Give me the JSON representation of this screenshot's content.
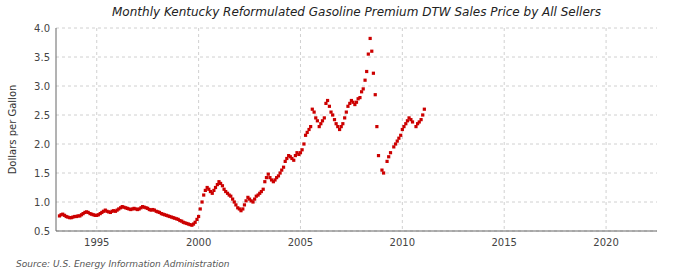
{
  "chart_data": {
    "type": "scatter",
    "title": "Monthly Kentucky Reformulated Gasoline Premium DTW Sales Price by All Sellers",
    "ylabel": "Dollars per Gallon",
    "source": "Source: U.S. Energy Information Administration",
    "color": "#cc0000",
    "marker": "square",
    "grid": true,
    "xlim": [
      1993.0,
      2022.5
    ],
    "ylim": [
      0.5,
      4.0
    ],
    "xticks": [
      1995,
      2000,
      2005,
      2010,
      2015,
      2020
    ],
    "yticks": [
      0.5,
      {
        "value": 1.0,
        "label": "1.0"
      },
      1.5,
      {
        "value": 2.0,
        "label": "2.0"
      },
      2.5,
      {
        "value": 3.0,
        "label": "3.0"
      },
      3.5,
      {
        "value": 4.0,
        "label": "4.0"
      }
    ],
    "x": [
      1993.17,
      1993.25,
      1993.33,
      1993.42,
      1993.5,
      1993.58,
      1993.67,
      1993.75,
      1993.83,
      1993.92,
      1994.0,
      1994.08,
      1994.17,
      1994.25,
      1994.33,
      1994.42,
      1994.5,
      1994.58,
      1994.67,
      1994.75,
      1994.83,
      1994.92,
      1995.0,
      1995.08,
      1995.17,
      1995.25,
      1995.33,
      1995.42,
      1995.5,
      1995.58,
      1995.67,
      1995.75,
      1995.83,
      1995.92,
      1996.0,
      1996.08,
      1996.17,
      1996.25,
      1996.33,
      1996.42,
      1996.5,
      1996.58,
      1996.67,
      1996.75,
      1996.83,
      1996.92,
      1997.0,
      1997.08,
      1997.17,
      1997.25,
      1997.33,
      1997.42,
      1997.5,
      1997.58,
      1997.67,
      1997.75,
      1997.83,
      1997.92,
      1998.0,
      1998.08,
      1998.17,
      1998.25,
      1998.33,
      1998.42,
      1998.5,
      1998.58,
      1998.67,
      1998.75,
      1998.83,
      1998.92,
      1999.0,
      1999.08,
      1999.17,
      1999.25,
      1999.33,
      1999.42,
      1999.5,
      1999.58,
      1999.67,
      1999.75,
      1999.83,
      1999.92,
      2000.0,
      2000.08,
      2000.17,
      2000.25,
      2000.33,
      2000.42,
      2000.5,
      2000.58,
      2000.67,
      2000.75,
      2000.83,
      2000.92,
      2001.0,
      2001.08,
      2001.17,
      2001.25,
      2001.33,
      2001.42,
      2001.5,
      2001.58,
      2001.67,
      2001.75,
      2001.83,
      2001.92,
      2002.0,
      2002.08,
      2002.17,
      2002.25,
      2002.33,
      2002.42,
      2002.5,
      2002.58,
      2002.67,
      2002.75,
      2002.83,
      2002.92,
      2003.0,
      2003.08,
      2003.17,
      2003.25,
      2003.33,
      2003.42,
      2003.5,
      2003.58,
      2003.67,
      2003.75,
      2003.83,
      2003.92,
      2004.0,
      2004.08,
      2004.17,
      2004.25,
      2004.33,
      2004.42,
      2004.5,
      2004.58,
      2004.67,
      2004.75,
      2004.83,
      2004.92,
      2005.0,
      2005.08,
      2005.17,
      2005.25,
      2005.33,
      2005.42,
      2005.5,
      2005.58,
      2005.67,
      2005.75,
      2005.83,
      2005.92,
      2006.0,
      2006.08,
      2006.17,
      2006.25,
      2006.33,
      2006.42,
      2006.5,
      2006.58,
      2006.67,
      2006.75,
      2006.83,
      2006.92,
      2007.0,
      2007.08,
      2007.17,
      2007.25,
      2007.33,
      2007.42,
      2007.5,
      2007.58,
      2007.67,
      2007.75,
      2007.83,
      2007.92,
      2008.0,
      2008.08,
      2008.17,
      2008.25,
      2008.33,
      2008.42,
      2008.5,
      2008.58,
      2008.67,
      2008.75,
      2008.83,
      2009.0,
      2009.08,
      2009.25,
      2009.33,
      2009.42,
      2009.58,
      2009.67,
      2009.75,
      2009.83,
      2009.92,
      2010.0,
      2010.08,
      2010.17,
      2010.25,
      2010.33,
      2010.42,
      2010.5,
      2010.67,
      2010.75,
      2010.83,
      2010.92,
      2011.0,
      2011.08
    ],
    "values": [
      0.76,
      0.78,
      0.79,
      0.77,
      0.75,
      0.74,
      0.73,
      0.73,
      0.74,
      0.75,
      0.75,
      0.76,
      0.76,
      0.78,
      0.8,
      0.82,
      0.83,
      0.82,
      0.8,
      0.79,
      0.78,
      0.77,
      0.77,
      0.78,
      0.8,
      0.82,
      0.84,
      0.86,
      0.84,
      0.83,
      0.82,
      0.84,
      0.85,
      0.84,
      0.86,
      0.88,
      0.9,
      0.92,
      0.91,
      0.9,
      0.89,
      0.88,
      0.87,
      0.88,
      0.89,
      0.88,
      0.87,
      0.88,
      0.9,
      0.92,
      0.91,
      0.9,
      0.89,
      0.87,
      0.86,
      0.87,
      0.86,
      0.84,
      0.83,
      0.82,
      0.8,
      0.79,
      0.78,
      0.77,
      0.76,
      0.75,
      0.74,
      0.73,
      0.72,
      0.71,
      0.7,
      0.68,
      0.67,
      0.65,
      0.64,
      0.63,
      0.62,
      0.61,
      0.6,
      0.62,
      0.65,
      0.7,
      0.75,
      0.88,
      1.0,
      1.12,
      1.2,
      1.25,
      1.22,
      1.18,
      1.15,
      1.2,
      1.25,
      1.3,
      1.35,
      1.32,
      1.28,
      1.22,
      1.18,
      1.15,
      1.12,
      1.1,
      1.05,
      1.0,
      0.95,
      0.9,
      0.88,
      0.85,
      0.88,
      0.95,
      1.02,
      1.08,
      1.05,
      1.02,
      1.0,
      1.05,
      1.1,
      1.12,
      1.15,
      1.18,
      1.22,
      1.35,
      1.42,
      1.48,
      1.42,
      1.38,
      1.35,
      1.38,
      1.42,
      1.45,
      1.5,
      1.55,
      1.6,
      1.7,
      1.75,
      1.8,
      1.78,
      1.75,
      1.72,
      1.8,
      1.85,
      1.82,
      1.85,
      1.9,
      2.0,
      2.15,
      2.2,
      2.25,
      2.3,
      2.6,
      2.55,
      2.45,
      2.4,
      2.3,
      2.35,
      2.4,
      2.45,
      2.7,
      2.75,
      2.65,
      2.55,
      2.5,
      2.42,
      2.35,
      2.3,
      2.25,
      2.3,
      2.35,
      2.45,
      2.55,
      2.65,
      2.7,
      2.75,
      2.72,
      2.68,
      2.72,
      2.78,
      2.8,
      2.9,
      2.95,
      3.1,
      3.25,
      3.55,
      3.82,
      3.6,
      3.22,
      2.85,
      2.3,
      1.8,
      1.55,
      1.5,
      1.7,
      1.78,
      1.85,
      1.95,
      2.0,
      2.05,
      2.1,
      2.15,
      2.25,
      2.3,
      2.35,
      2.4,
      2.45,
      2.42,
      2.38,
      2.3,
      2.35,
      2.38,
      2.42,
      2.5,
      2.6
    ]
  }
}
